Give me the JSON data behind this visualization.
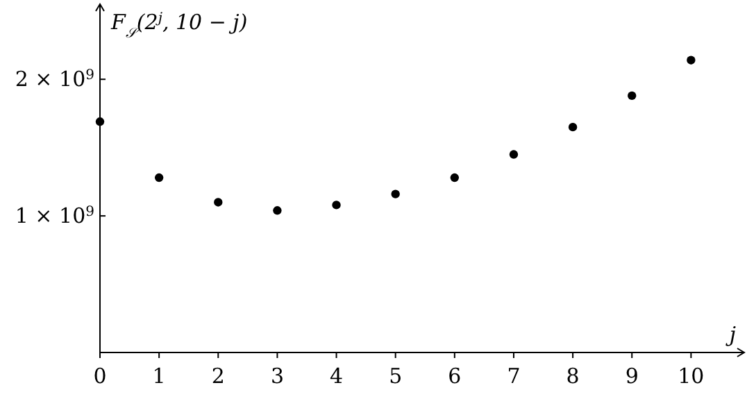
{
  "chart_data": {
    "type": "scatter",
    "xlabel": "j",
    "ylabel": "F$_{𝒮}$(2$^{j}$, 10 − j)",
    "x": [
      0,
      1,
      2,
      3,
      4,
      5,
      6,
      7,
      8,
      9,
      10
    ],
    "values": [
      1690000000.0,
      1280000000.0,
      1100000000.0,
      1040000000.0,
      1080000000.0,
      1160000000.0,
      1280000000.0,
      1450000000.0,
      1650000000.0,
      1880000000.0,
      2140000000.0
    ],
    "color": "#000000",
    "marker": "circle",
    "xlim": [
      0,
      10.9
    ],
    "ylim": [
      0,
      2550000000.0
    ],
    "xticks": [
      0,
      1,
      2,
      3,
      4,
      5,
      6,
      7,
      8,
      9,
      10
    ],
    "yticks": [
      {
        "value": 1000000000.0,
        "label": "1 × 10$^{9}$"
      },
      {
        "value": 2000000000.0,
        "label": "2 × 10$^{9}$"
      }
    ],
    "grid": false
  }
}
